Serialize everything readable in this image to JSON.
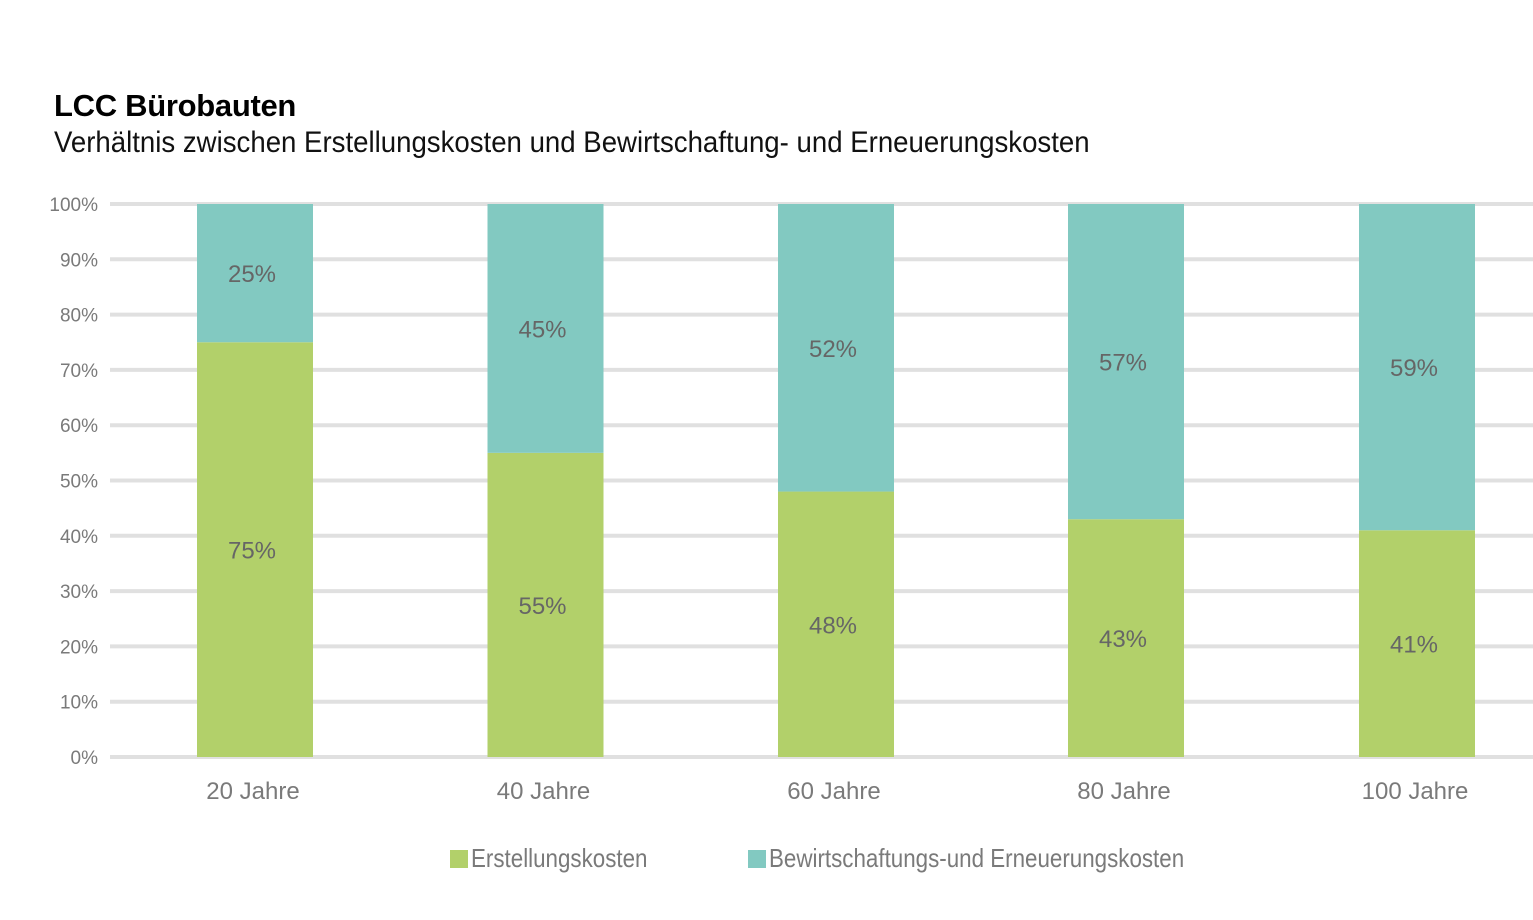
{
  "chart_data": {
    "type": "bar",
    "stacked": true,
    "title": "LCC Bürobauten",
    "subtitle": "Verhältnis zwischen Erstellungskosten und Bewirtschaftung- und Erneuerungskosten",
    "xlabel": "",
    "ylabel": "",
    "categories": [
      "20 Jahre",
      "40 Jahre",
      "60 Jahre",
      "80 Jahre",
      "100 Jahre"
    ],
    "series": [
      {
        "name": "Erstellungskosten",
        "color": "#b2d06a",
        "values": [
          75,
          55,
          48,
          43,
          41
        ],
        "labels": [
          "75%",
          "55%",
          "48%",
          "43%",
          "41%"
        ]
      },
      {
        "name": "Bewirtschaftungs-und Erneuerungskosten",
        "color": "#82c9c1",
        "values": [
          25,
          45,
          52,
          57,
          59
        ],
        "labels": [
          "25%",
          "45%",
          "52%",
          "57%",
          "59%"
        ]
      }
    ],
    "ylim": [
      0,
      100
    ],
    "yticks": [
      0,
      10,
      20,
      30,
      40,
      50,
      60,
      70,
      80,
      90,
      100
    ],
    "ytick_labels": [
      "0%",
      "10%",
      "20%",
      "30%",
      "40%",
      "50%",
      "60%",
      "70%",
      "80%",
      "90%",
      "100%"
    ],
    "grid": true,
    "grid_color": "#e0e0e0",
    "tick_label_color": "#7a7a7a",
    "data_label_color": "#666666",
    "legend_position": "bottom-center"
  }
}
